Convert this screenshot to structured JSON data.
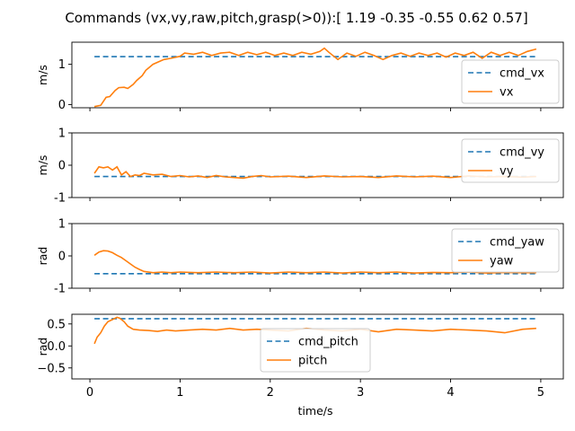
{
  "title": "Commands (vx,vy,raw,pitch,grasp(>0)):[ 1.19 -0.35 -0.55  0.62  0.57]",
  "xlabel": "time/s",
  "colors": {
    "cmd": "#1f77b4",
    "actual": "#ff7f0e"
  },
  "chart_data": [
    {
      "type": "line",
      "ylabel": "m/s",
      "xlim": [
        -0.2,
        5.25
      ],
      "ylim": [
        -0.08,
        1.55
      ],
      "yticks": [
        0,
        1
      ],
      "xticks": [
        0,
        1,
        2,
        3,
        4,
        5
      ],
      "show_xticklabels": false,
      "legend": "lower-right",
      "series": [
        {
          "name": "cmd_vx",
          "style": "dashed",
          "x": [
            0.05,
            4.95
          ],
          "y": [
            1.19,
            1.19
          ]
        },
        {
          "name": "vx",
          "style": "solid",
          "x": [
            0.05,
            0.12,
            0.18,
            0.22,
            0.28,
            0.32,
            0.38,
            0.42,
            0.48,
            0.52,
            0.58,
            0.62,
            0.7,
            0.78,
            0.82,
            0.9,
            1.0,
            1.05,
            1.15,
            1.25,
            1.35,
            1.45,
            1.55,
            1.65,
            1.75,
            1.85,
            1.95,
            2.05,
            2.15,
            2.25,
            2.35,
            2.45,
            2.55,
            2.6,
            2.65,
            2.75,
            2.85,
            2.95,
            3.05,
            3.15,
            3.25,
            3.35,
            3.45,
            3.55,
            3.65,
            3.75,
            3.85,
            3.95,
            4.05,
            4.15,
            4.25,
            4.35,
            4.45,
            4.55,
            4.65,
            4.75,
            4.85,
            4.95
          ],
          "y": [
            -0.05,
            -0.02,
            0.18,
            0.2,
            0.35,
            0.42,
            0.43,
            0.4,
            0.5,
            0.6,
            0.72,
            0.85,
            1.0,
            1.08,
            1.12,
            1.15,
            1.2,
            1.28,
            1.25,
            1.3,
            1.22,
            1.28,
            1.3,
            1.22,
            1.3,
            1.24,
            1.3,
            1.22,
            1.28,
            1.22,
            1.3,
            1.25,
            1.32,
            1.4,
            1.3,
            1.12,
            1.28,
            1.2,
            1.3,
            1.22,
            1.12,
            1.22,
            1.28,
            1.2,
            1.28,
            1.22,
            1.28,
            1.18,
            1.28,
            1.22,
            1.3,
            1.15,
            1.3,
            1.22,
            1.3,
            1.22,
            1.32,
            1.38
          ]
        }
      ]
    },
    {
      "type": "line",
      "ylabel": "m/s",
      "xlim": [
        -0.2,
        5.25
      ],
      "ylim": [
        -1,
        1
      ],
      "yticks": [
        -1,
        0,
        1
      ],
      "xticks": [
        0,
        1,
        2,
        3,
        4,
        5
      ],
      "show_xticklabels": false,
      "legend": "upper-right",
      "series": [
        {
          "name": "cmd_vy",
          "style": "dashed",
          "x": [
            0.05,
            4.95
          ],
          "y": [
            -0.35,
            -0.35
          ]
        },
        {
          "name": "vy",
          "style": "solid",
          "x": [
            0.05,
            0.1,
            0.15,
            0.2,
            0.25,
            0.3,
            0.35,
            0.4,
            0.45,
            0.5,
            0.55,
            0.6,
            0.7,
            0.8,
            0.9,
            1.0,
            1.1,
            1.2,
            1.3,
            1.4,
            1.5,
            1.6,
            1.7,
            1.8,
            1.9,
            2.0,
            2.2,
            2.4,
            2.6,
            2.8,
            3.0,
            3.2,
            3.4,
            3.6,
            3.8,
            4.0,
            4.2,
            4.4,
            4.6,
            4.8,
            4.95
          ],
          "y": [
            -0.25,
            -0.05,
            -0.08,
            -0.05,
            -0.15,
            -0.05,
            -0.3,
            -0.2,
            -0.35,
            -0.3,
            -0.32,
            -0.25,
            -0.3,
            -0.28,
            -0.35,
            -0.32,
            -0.36,
            -0.33,
            -0.38,
            -0.32,
            -0.36,
            -0.38,
            -0.4,
            -0.35,
            -0.32,
            -0.36,
            -0.34,
            -0.38,
            -0.33,
            -0.36,
            -0.35,
            -0.38,
            -0.33,
            -0.36,
            -0.34,
            -0.38,
            -0.33,
            -0.36,
            -0.35,
            -0.37,
            -0.35
          ]
        }
      ]
    },
    {
      "type": "line",
      "ylabel": "rad",
      "xlim": [
        -0.2,
        5.25
      ],
      "ylim": [
        -1,
        1
      ],
      "yticks": [
        -1,
        0,
        1
      ],
      "xticks": [
        0,
        1,
        2,
        3,
        4,
        5
      ],
      "show_xticklabels": false,
      "legend": "upper-right",
      "series": [
        {
          "name": "cmd_yaw",
          "style": "dashed",
          "x": [
            0.05,
            4.95
          ],
          "y": [
            -0.55,
            -0.55
          ]
        },
        {
          "name": "yaw",
          "style": "solid",
          "x": [
            0.05,
            0.1,
            0.15,
            0.2,
            0.25,
            0.3,
            0.35,
            0.4,
            0.45,
            0.5,
            0.55,
            0.6,
            0.7,
            0.8,
            0.9,
            1.0,
            1.2,
            1.4,
            1.6,
            1.8,
            2.0,
            2.2,
            2.4,
            2.6,
            2.8,
            3.0,
            3.2,
            3.4,
            3.6,
            3.8,
            4.0,
            4.2,
            4.4,
            4.6,
            4.8,
            4.95
          ],
          "y": [
            0.02,
            0.12,
            0.16,
            0.15,
            0.1,
            0.02,
            -0.05,
            -0.15,
            -0.25,
            -0.35,
            -0.42,
            -0.48,
            -0.52,
            -0.5,
            -0.52,
            -0.5,
            -0.52,
            -0.5,
            -0.52,
            -0.5,
            -0.53,
            -0.5,
            -0.52,
            -0.5,
            -0.53,
            -0.5,
            -0.52,
            -0.5,
            -0.53,
            -0.51,
            -0.52,
            -0.5,
            -0.53,
            -0.51,
            -0.52,
            -0.52
          ]
        }
      ]
    },
    {
      "type": "line",
      "ylabel": "rad",
      "xlim": [
        -0.2,
        5.25
      ],
      "ylim": [
        -0.75,
        0.72
      ],
      "yticks": [
        -0.5,
        0.0,
        0.5
      ],
      "yticklabels": [
        "−0.5",
        "0.0",
        "0.5"
      ],
      "xticks": [
        0,
        1,
        2,
        3,
        4,
        5
      ],
      "xticklabels": [
        "0",
        "1",
        "2",
        "3",
        "4",
        "5"
      ],
      "show_xticklabels": true,
      "legend": "lower-center",
      "series": [
        {
          "name": "cmd_pitch",
          "style": "dashed",
          "x": [
            0.05,
            4.95
          ],
          "y": [
            0.62,
            0.62
          ]
        },
        {
          "name": "pitch",
          "style": "solid",
          "x": [
            0.05,
            0.08,
            0.12,
            0.16,
            0.2,
            0.25,
            0.3,
            0.33,
            0.38,
            0.42,
            0.48,
            0.55,
            0.65,
            0.75,
            0.85,
            0.95,
            1.1,
            1.25,
            1.4,
            1.55,
            1.7,
            1.85,
            2.0,
            2.2,
            2.4,
            2.6,
            2.8,
            3.0,
            3.2,
            3.4,
            3.6,
            3.8,
            4.0,
            4.2,
            4.4,
            4.6,
            4.8,
            4.95
          ],
          "y": [
            0.05,
            0.2,
            0.3,
            0.45,
            0.55,
            0.6,
            0.65,
            0.63,
            0.55,
            0.45,
            0.38,
            0.36,
            0.35,
            0.33,
            0.36,
            0.34,
            0.36,
            0.38,
            0.36,
            0.4,
            0.36,
            0.38,
            0.36,
            0.34,
            0.4,
            0.36,
            0.34,
            0.38,
            0.32,
            0.38,
            0.36,
            0.34,
            0.38,
            0.36,
            0.34,
            0.3,
            0.38,
            0.4
          ]
        }
      ]
    }
  ]
}
